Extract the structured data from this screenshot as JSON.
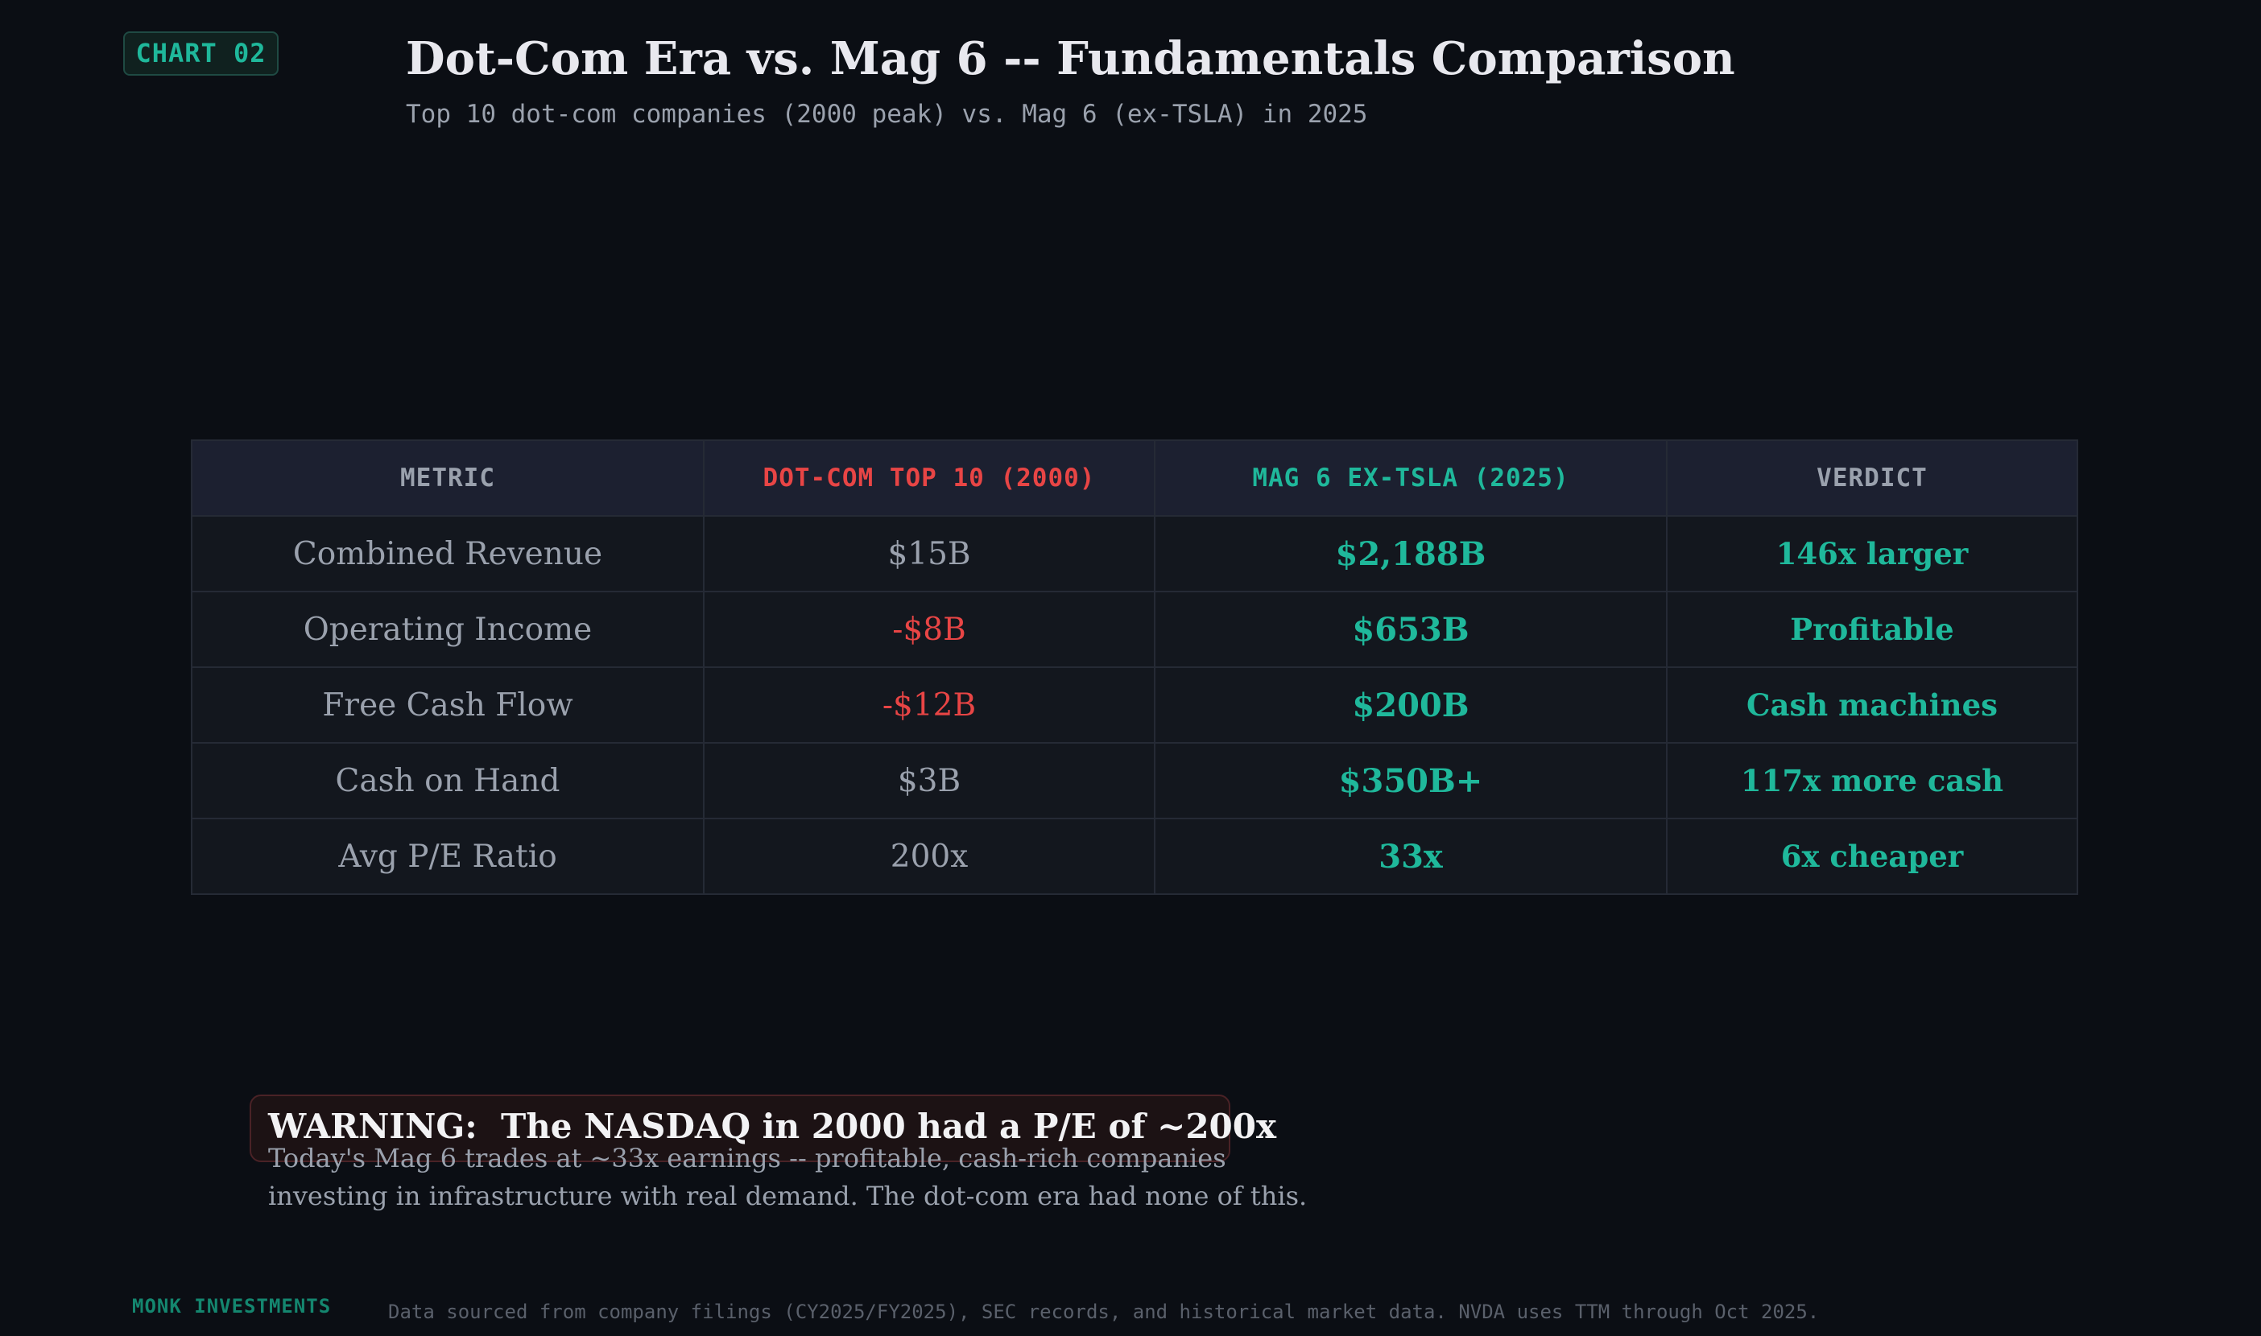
{
  "badge": "CHART 02",
  "title": "Dot-Com Era vs. Mag 6 -- Fundamentals Comparison",
  "subtitle": "Top 10 dot-com companies (2000 peak) vs. Mag 6 (ex-TSLA) in 2025",
  "colors": {
    "background": "#0b0e14",
    "dotcom_red": "#e84545",
    "mag_teal": "#1fb89b",
    "muted_text": "#9aa1ad"
  },
  "chart_data": {
    "type": "table",
    "columns": [
      "METRIC",
      "DOT-COM TOP 10 (2000)",
      "MAG 6 EX-TSLA (2025)",
      "VERDICT"
    ],
    "rows": [
      {
        "metric": "Combined Revenue",
        "dotcom": "$15B",
        "mag6": "$2,188B",
        "verdict": "146x larger"
      },
      {
        "metric": "Operating Income",
        "dotcom": "-$8B",
        "mag6": "$653B",
        "verdict": "Profitable"
      },
      {
        "metric": "Free Cash Flow",
        "dotcom": "-$12B",
        "mag6": "$200B",
        "verdict": "Cash machines"
      },
      {
        "metric": "Cash on Hand",
        "dotcom": "$3B",
        "mag6": "$350B+",
        "verdict": "117x more cash"
      },
      {
        "metric": "Avg P/E Ratio",
        "dotcom": "200x",
        "mag6": "33x",
        "verdict": "6x cheaper"
      }
    ]
  },
  "warning": {
    "title": "WARNING:  The NASDAQ in 2000 had a P/E of ~200x",
    "body_line1": "Today's Mag 6 trades at ~33x earnings -- profitable, cash-rich companies",
    "body_line2": "investing in infrastructure with real demand. The dot-com era had none of this."
  },
  "footer": {
    "brand": "MONK INVESTMENTS",
    "note": "Data sourced from company filings (CY2025/FY2025), SEC records, and historical market data. NVDA uses TTM through Oct 2025."
  }
}
